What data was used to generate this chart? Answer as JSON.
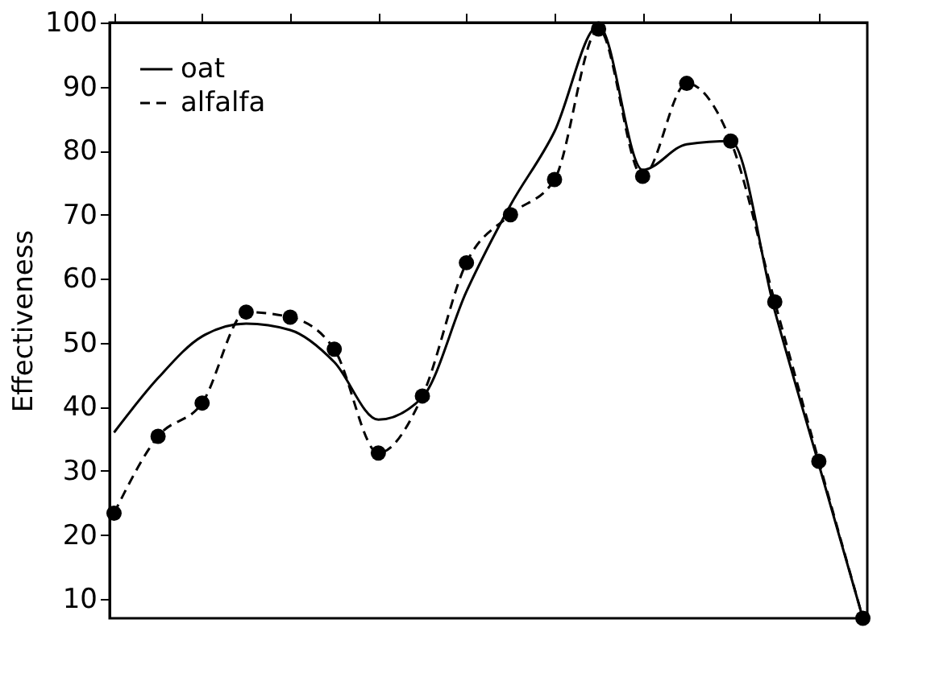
{
  "chart_data": {
    "type": "line",
    "ylabel": "Effectiveness",
    "categories": [
      null,
      null,
      null,
      null,
      null,
      null,
      null,
      null,
      null,
      null,
      null,
      null,
      null,
      null,
      null,
      null,
      null,
      null
    ],
    "series": [
      {
        "name": "oat",
        "color": "#000000",
        "line_style": "solid",
        "marker": "none",
        "values": [
          36,
          44.5,
          51,
          53,
          52,
          47,
          38,
          41.5,
          58,
          71.5,
          83,
          99.5,
          77,
          81,
          81.5,
          55,
          31,
          7
        ]
      },
      {
        "name": "alfalfa",
        "color": "#000000",
        "line_style": "dashed",
        "marker": "circle",
        "values": [
          23.4,
          35.4,
          40.6,
          54.8,
          54,
          49,
          32.8,
          41.7,
          62.5,
          70,
          75.5,
          99,
          76,
          90.5,
          81.5,
          56.4,
          31.5,
          7
        ]
      }
    ],
    "ylim": [
      7,
      100
    ],
    "yticks": [
      10,
      20,
      30,
      40,
      50,
      60,
      70,
      80,
      90,
      100
    ],
    "grid": false,
    "legend": "top left",
    "tick_labels": "y"
  }
}
